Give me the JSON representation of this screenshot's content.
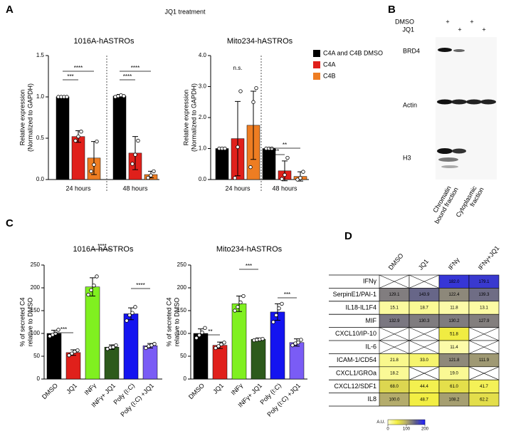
{
  "panel_labels": [
    "A",
    "B",
    "C",
    "D"
  ],
  "header": "JQ1 treatment",
  "blot": {
    "treatments": [
      {
        "label": "DMSO",
        "signs": [
          "+",
          null,
          "+",
          null
        ]
      },
      {
        "label": "JQ1",
        "signs": [
          null,
          "+",
          null,
          "+"
        ]
      }
    ],
    "proteins": [
      "BRD4",
      "Actin",
      "H3"
    ],
    "fractions": [
      [
        "Chromatin",
        "bound fraction"
      ],
      [
        "Cytoplasmic",
        "fraction"
      ]
    ]
  },
  "chart_data": [
    {
      "type": "grouped_bar",
      "title": "1016A-hASTROs",
      "ylabel": [
        "Relative expression",
        "(Normalized to GAPDH)"
      ],
      "categories": [
        "24 hours",
        "48 hours"
      ],
      "ylim": [
        0,
        1.5
      ],
      "yticks": [
        {
          "value": 0,
          "label": "0.0"
        },
        0.5,
        {
          "value": 1,
          "label": "1.0"
        },
        1.5
      ],
      "legend": false,
      "series": [
        {
          "name": "C4A and C4B DMSO",
          "color": "#000000",
          "values": [
            1.0,
            1.01
          ],
          "errors": [
            0.01,
            0.02
          ],
          "points": [
            [
              1.0,
              1.0,
              1.0,
              1.0
            ],
            [
              1.0,
              1.01,
              1.02,
              1.01
            ]
          ]
        },
        {
          "name": "C4A",
          "color": "#e0201b",
          "values": [
            0.52,
            0.32
          ],
          "errors": [
            0.07,
            0.2
          ],
          "points": [
            [
              0.47,
              0.52,
              0.58
            ],
            [
              0.19,
              0.3,
              0.47
            ]
          ]
        },
        {
          "name": "C4B",
          "color": "#ee7d22",
          "values": [
            0.26,
            0.06
          ],
          "errors": [
            0.2,
            0.04
          ],
          "points": [
            [
              0.1,
              0.18,
              0.46
            ],
            [
              0.02,
              0.05,
              0.1
            ]
          ]
        }
      ],
      "annotations": [
        "****",
        "***",
        "****",
        "****"
      ]
    },
    {
      "type": "grouped_bar",
      "title": "Mito234-hASTROs",
      "ylabel": [
        "Relative expression",
        "(Normalized to GAPDH)"
      ],
      "categories": [
        "24 hours",
        "48 hours"
      ],
      "ylim": [
        0,
        4
      ],
      "yticks": [
        {
          "value": 0,
          "label": "0.0"
        },
        {
          "value": 1,
          "label": "1.0"
        },
        {
          "value": 2,
          "label": "2.0"
        },
        {
          "value": 3,
          "label": "3.0"
        },
        {
          "value": 4,
          "label": "4.0"
        }
      ],
      "legend": "upper right",
      "series": [
        {
          "name": "C4A and C4B DMSO",
          "color": "#000000",
          "values": [
            1.0,
            1.0
          ],
          "errors": [
            0.02,
            0.02
          ],
          "points": [
            [
              1.0,
              1.0,
              1.0
            ],
            [
              1.0,
              1.0,
              1.0
            ]
          ]
        },
        {
          "name": "C4A",
          "color": "#e0201b",
          "values": [
            1.32,
            0.28
          ],
          "errors": [
            1.2,
            0.32
          ],
          "points": [
            [
              0.05,
              1.05,
              2.85
            ],
            [
              0.02,
              0.15,
              0.7
            ]
          ]
        },
        {
          "name": "C4B",
          "color": "#ee7d22",
          "values": [
            1.75,
            0.1
          ],
          "errors": [
            1.1,
            0.15
          ],
          "points": [
            [
              0.4,
              2.5,
              2.95
            ],
            [
              0.0,
              0.05,
              0.25
            ]
          ]
        }
      ],
      "annotations": [
        "n.s.",
        "**",
        "**"
      ]
    },
    {
      "type": "bar",
      "title": "1016A-hASTROs",
      "ylabel": [
        "% of secreted C4",
        "relative to DMSO"
      ],
      "categories": [
        "DMSO",
        "JQ1",
        "INFγ",
        "INFγ+ JQ1",
        "Poly (I:C)",
        "Poly (I:C) +JQ1"
      ],
      "colors": [
        "#000000",
        "#e0201b",
        "#80f020",
        "#2d5a1c",
        "#1414f0",
        "#7a5cf5"
      ],
      "values": [
        100,
        58,
        202,
        70,
        143,
        73
      ],
      "errors": [
        7,
        6,
        20,
        5,
        13,
        5
      ],
      "points": [
        [
          94,
          97,
          100,
          108
        ],
        [
          52,
          56,
          60,
          63
        ],
        [
          185,
          195,
          205,
          225
        ],
        [
          66,
          69,
          70,
          74
        ],
        [
          128,
          140,
          145,
          158
        ],
        [
          68,
          72,
          74,
          77
        ]
      ],
      "ylim": [
        0,
        250
      ],
      "yticks": [
        0,
        50,
        100,
        150,
        200,
        250
      ],
      "annotations": [
        "***",
        "****",
        "****"
      ]
    },
    {
      "type": "bar",
      "title": "Mito234-hASTROs",
      "ylabel": [
        "% of secreted C4",
        "relative to DMSO"
      ],
      "categories": [
        "DMSO",
        "JQ1",
        "INFγ",
        "INFγ+ JQ1",
        "Poly (I:C)",
        "Poly (I:C) +JQ1"
      ],
      "colors": [
        "#000000",
        "#e0201b",
        "#80f020",
        "#2d5a1c",
        "#1414f0",
        "#7a5cf5"
      ],
      "values": [
        100,
        74,
        165,
        87,
        147,
        80
      ],
      "errors": [
        10,
        7,
        17,
        3,
        18,
        8
      ],
      "points": [
        [
          90,
          96,
          102,
          112
        ],
        [
          68,
          72,
          76,
          80
        ],
        [
          150,
          158,
          168,
          182
        ],
        [
          85,
          86,
          87,
          88
        ],
        [
          125,
          140,
          155,
          165
        ],
        [
          74,
          78,
          80,
          86
        ]
      ],
      "ylim": [
        0,
        250
      ],
      "yticks": [
        0,
        50,
        100,
        150,
        200,
        250
      ],
      "annotations": [
        "**",
        "***",
        "***"
      ]
    },
    {
      "type": "heatmap",
      "columns": [
        "DMSO",
        "JQ1",
        "IFNγ",
        "IFNγ+JQ1"
      ],
      "rows": [
        "IFNγ",
        "SerpinE1/PAI-1",
        "IL18-IL1F4",
        "MIF",
        "CXCL10/IP-10",
        "IL-6",
        "ICAM-1/CD54",
        "CXCL1/GROa",
        "CXCL12/SDF1",
        "IL8"
      ],
      "values": [
        [
          null,
          null,
          182.0,
          179.1
        ],
        [
          129.1,
          143.9,
          122.4,
          139.3
        ],
        [
          15.1,
          18.7,
          11.8,
          13.1
        ],
        [
          132.9,
          130.3,
          130.2,
          127.9
        ],
        [
          null,
          null,
          51.8,
          null
        ],
        [
          null,
          null,
          11.4,
          null
        ],
        [
          21.8,
          33.0,
          121.8,
          111.9
        ],
        [
          18.2,
          null,
          19.0,
          null
        ],
        [
          68.0,
          44.4,
          61.0,
          41.7
        ],
        [
          100.0,
          48.7,
          108.2,
          62.2
        ]
      ],
      "value_labels": [
        [
          null,
          null,
          "182.0",
          "179.1"
        ],
        [
          "129.1",
          "143.9",
          "122.4",
          "139.3"
        ],
        [
          "15.1",
          "18.7",
          "11.8",
          "13.1"
        ],
        [
          "132.9",
          "130.3",
          "130.2",
          "127.9"
        ],
        [
          null,
          null,
          "51.8",
          null
        ],
        [
          null,
          null,
          "11.4",
          null
        ],
        [
          "21.8",
          "33.0",
          "121.8",
          "111.9"
        ],
        [
          "18.2",
          null,
          "19.0",
          null
        ],
        [
          "68.0",
          "44.4",
          "61.0",
          "41.7"
        ],
        [
          "100.0",
          "48.7",
          "108.2",
          "62.2"
        ]
      ],
      "colormap": [
        "#ffffc8",
        "#f2ee40",
        "#b4ac6c",
        "#5c5c8c",
        "#2020ff"
      ],
      "clim": [
        0,
        200
      ],
      "cticks": [
        0,
        100,
        200
      ],
      "clabel": "A.U."
    }
  ]
}
